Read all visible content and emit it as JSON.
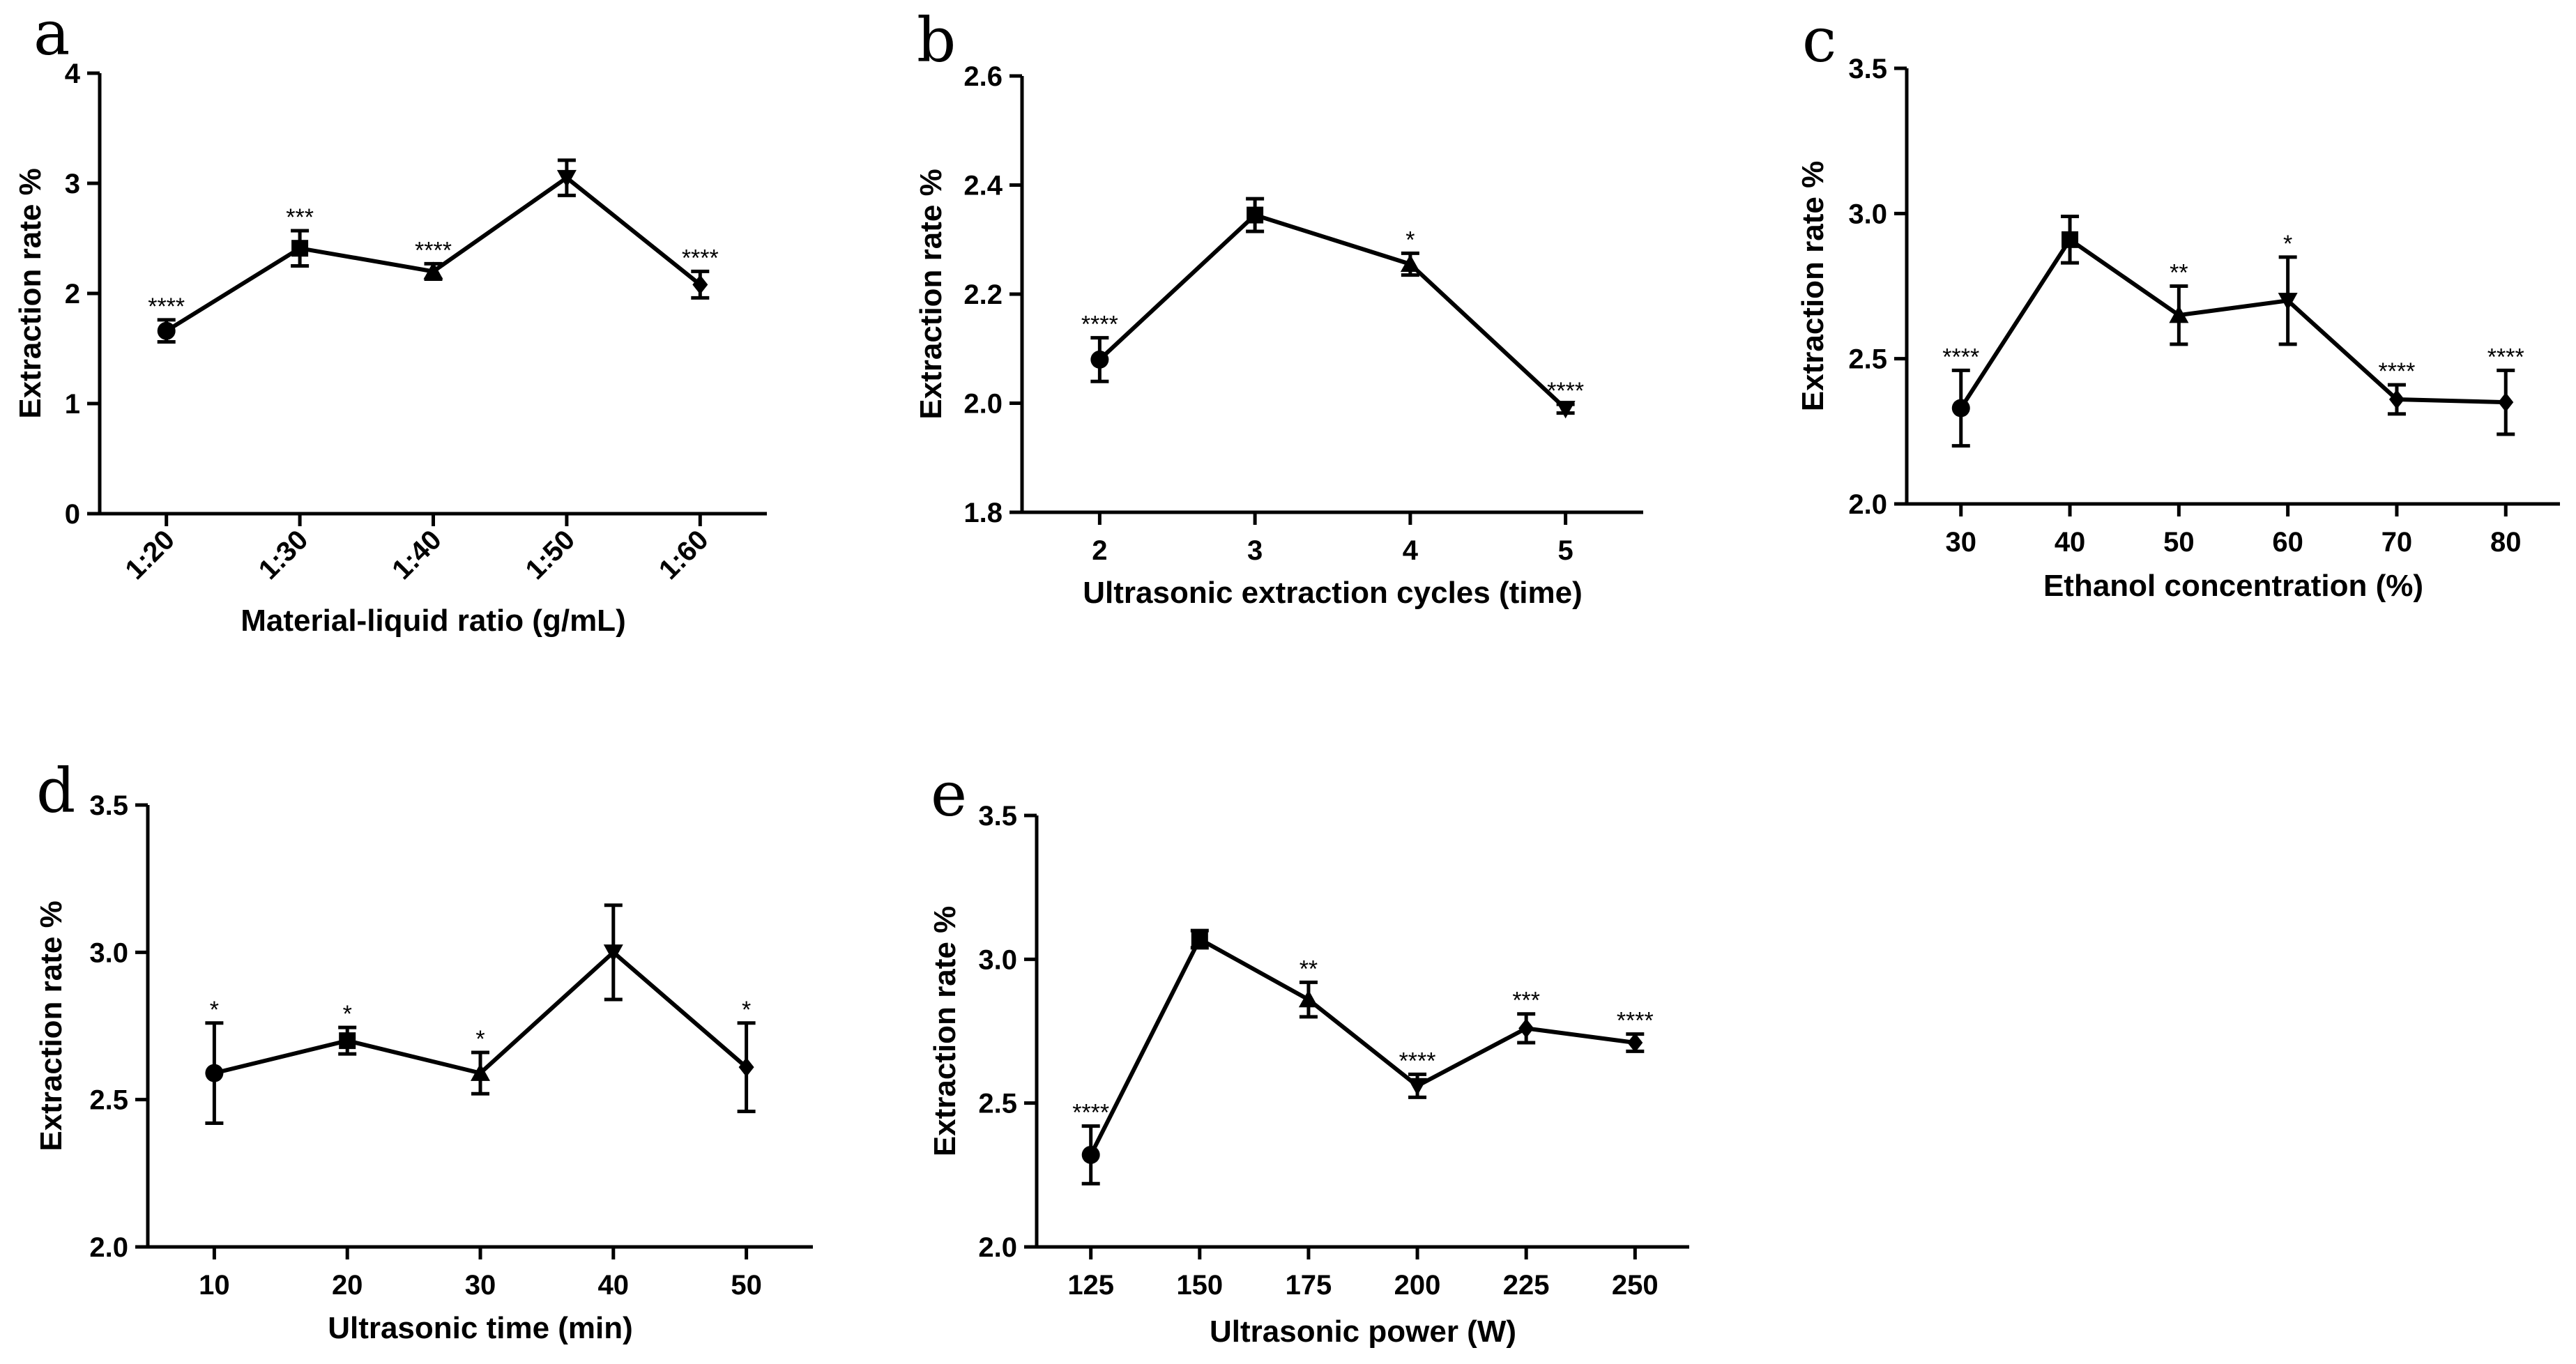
{
  "chart_data": [
    {
      "id": "a",
      "type": "line",
      "panel_label": "a",
      "xlabel": "Material-liquid ratio (g/mL)",
      "ylabel": "Extraction rate %",
      "categories": [
        "1:20",
        "1:30",
        "1:40",
        "1:50",
        "1:60"
      ],
      "rotated_x_ticks": true,
      "ylim": [
        0,
        4
      ],
      "yticks": [
        "0",
        "1",
        "2",
        "3",
        "4"
      ],
      "series": [
        {
          "values": [
            1.66,
            2.41,
            2.2,
            3.05,
            2.08
          ],
          "errors": [
            0.1,
            0.16,
            0.07,
            0.16,
            0.12
          ],
          "markers": [
            "circle",
            "square",
            "triangle-up",
            "triangle-down",
            "diamond"
          ],
          "significance": [
            "****",
            "***",
            "****",
            "",
            "****"
          ]
        }
      ]
    },
    {
      "id": "b",
      "type": "line",
      "panel_label": "b",
      "xlabel": "Ultrasonic extraction cycles (time)",
      "ylabel": "Extraction rate %",
      "categories": [
        "2",
        "3",
        "4",
        "5"
      ],
      "rotated_x_ticks": false,
      "ylim": [
        1.8,
        2.6
      ],
      "yticks": [
        "1.8",
        "2.0",
        "2.2",
        "2.4",
        "2.6"
      ],
      "series": [
        {
          "values": [
            2.08,
            2.345,
            2.255,
            1.99
          ],
          "errors": [
            0.04,
            0.03,
            0.02,
            0.008
          ],
          "markers": [
            "circle",
            "square",
            "triangle-up",
            "triangle-down"
          ],
          "significance": [
            "****",
            "",
            "*",
            "****"
          ]
        }
      ]
    },
    {
      "id": "c",
      "type": "line",
      "panel_label": "c",
      "xlabel": "Ethanol concentration (%)",
      "ylabel": "Extraction rate %",
      "categories": [
        "30",
        "40",
        "50",
        "60",
        "70",
        "80"
      ],
      "rotated_x_ticks": false,
      "ylim": [
        2.0,
        3.5
      ],
      "yticks": [
        "2.0",
        "2.5",
        "3.0",
        "3.5"
      ],
      "series": [
        {
          "values": [
            2.33,
            2.91,
            2.65,
            2.7,
            2.36,
            2.35
          ],
          "errors": [
            0.13,
            0.08,
            0.1,
            0.15,
            0.05,
            0.11
          ],
          "markers": [
            "circle",
            "square",
            "triangle-up",
            "triangle-down",
            "diamond",
            "diamond"
          ],
          "significance": [
            "****",
            "",
            "**",
            "*",
            "****",
            "****"
          ]
        }
      ]
    },
    {
      "id": "d",
      "type": "line",
      "panel_label": "d",
      "xlabel": "Ultrasonic time (min)",
      "ylabel": "Extraction rate %",
      "categories": [
        "10",
        "20",
        "30",
        "40",
        "50"
      ],
      "rotated_x_ticks": false,
      "ylim": [
        2.0,
        3.5
      ],
      "yticks": [
        "2.0",
        "2.5",
        "3.0",
        "3.5"
      ],
      "series": [
        {
          "values": [
            2.59,
            2.7,
            2.59,
            3.0,
            2.61
          ],
          "errors": [
            0.17,
            0.045,
            0.07,
            0.16,
            0.15
          ],
          "markers": [
            "circle",
            "square",
            "triangle-up",
            "triangle-down",
            "diamond"
          ],
          "significance": [
            "*",
            "*",
            "*",
            "",
            "*"
          ]
        }
      ]
    },
    {
      "id": "e",
      "type": "line",
      "panel_label": "e",
      "xlabel": "Ultrasonic power (W)",
      "ylabel": "Extraction rate %",
      "categories": [
        "125",
        "150",
        "175",
        "200",
        "225",
        "250"
      ],
      "rotated_x_ticks": false,
      "ylim": [
        2.0,
        3.5
      ],
      "yticks": [
        "2.0",
        "2.5",
        "3.0",
        "3.5"
      ],
      "series": [
        {
          "values": [
            2.32,
            3.07,
            2.86,
            2.56,
            2.76,
            2.71
          ],
          "errors": [
            0.1,
            0.03,
            0.06,
            0.04,
            0.05,
            0.03
          ],
          "markers": [
            "circle",
            "square",
            "triangle-up",
            "triangle-down",
            "diamond",
            "diamond"
          ],
          "significance": [
            "****",
            "",
            "**",
            "****",
            "***",
            "****"
          ]
        }
      ]
    }
  ]
}
